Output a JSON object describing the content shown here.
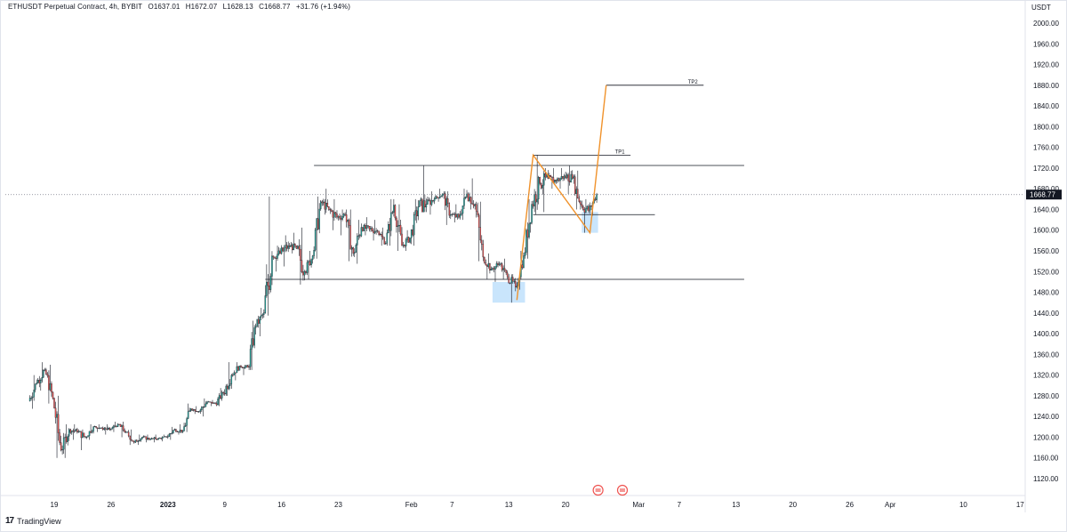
{
  "header": {
    "symbol": "ETHUSDT Perpetual Contract, 4h, BYBIT",
    "open": "O1637.01",
    "high": "H1672.07",
    "low": "L1628.13",
    "close": "C1668.77",
    "change": "+31.76 (+1.94%)"
  },
  "footer": {
    "brand": "TradingView"
  },
  "colors": {
    "up": "#26a69a",
    "down": "#ef5350",
    "candle": "#131722",
    "projection": "#f0922b",
    "level": "#131722",
    "zone": "#bbdefb",
    "grid": "#e0e3eb",
    "last_price_bg": "#131722"
  },
  "chart_data": {
    "type": "candlestick",
    "currency": "USDT",
    "ylim": [
      1100,
      2040
    ],
    "y_ticks": [
      "2000.00",
      "1960.00",
      "1920.00",
      "1880.00",
      "1840.00",
      "1800.00",
      "1760.00",
      "1720.00",
      "1680.00",
      "1640.00",
      "1600.00",
      "1560.00",
      "1520.00",
      "1480.00",
      "1440.00",
      "1400.00",
      "1360.00",
      "1320.00",
      "1280.00",
      "1240.00",
      "1200.00",
      "1160.00",
      "1120.00"
    ],
    "x_ticks": [
      "19",
      "26",
      "2023",
      "9",
      "16",
      "23",
      "Feb",
      "7",
      "13",
      "20",
      "Mar",
      "7",
      "13",
      "20",
      "26",
      "Apr",
      "10",
      "17"
    ],
    "last_price": "1668.77",
    "series": [
      {
        "candles_approx": [
          [
            "2022-12-16",
            1270,
            1320,
            1255,
            1305
          ],
          [
            "2022-12-17",
            1305,
            1345,
            1290,
            1330
          ],
          [
            "2022-12-18",
            1330,
            1340,
            1265,
            1275
          ],
          [
            "2022-12-19",
            1275,
            1280,
            1160,
            1175
          ],
          [
            "2022-12-20",
            1175,
            1225,
            1160,
            1215
          ],
          [
            "2022-12-21",
            1215,
            1225,
            1195,
            1210
          ],
          [
            "2022-12-22",
            1210,
            1215,
            1175,
            1200
          ],
          [
            "2022-12-23",
            1200,
            1225,
            1195,
            1220
          ],
          [
            "2022-12-24",
            1220,
            1225,
            1210,
            1218
          ],
          [
            "2022-12-25",
            1218,
            1225,
            1205,
            1215
          ],
          [
            "2022-12-26",
            1215,
            1230,
            1210,
            1225
          ],
          [
            "2022-12-27",
            1225,
            1230,
            1200,
            1210
          ],
          [
            "2022-12-28",
            1210,
            1215,
            1185,
            1190
          ],
          [
            "2022-12-29",
            1190,
            1205,
            1185,
            1200
          ],
          [
            "2022-12-30",
            1200,
            1205,
            1190,
            1196
          ],
          [
            "2022-12-31",
            1196,
            1205,
            1190,
            1198
          ],
          [
            "2023-01-01",
            1198,
            1205,
            1192,
            1200
          ],
          [
            "2023-01-02",
            1200,
            1220,
            1195,
            1215
          ],
          [
            "2023-01-03",
            1215,
            1225,
            1205,
            1212
          ],
          [
            "2023-01-04",
            1212,
            1265,
            1210,
            1255
          ],
          [
            "2023-01-05",
            1255,
            1260,
            1245,
            1250
          ],
          [
            "2023-01-06",
            1250,
            1275,
            1240,
            1268
          ],
          [
            "2023-01-07",
            1268,
            1272,
            1260,
            1265
          ],
          [
            "2023-01-08",
            1265,
            1295,
            1260,
            1285
          ],
          [
            "2023-01-09",
            1285,
            1345,
            1280,
            1320
          ],
          [
            "2023-01-10",
            1320,
            1345,
            1310,
            1338
          ],
          [
            "2023-01-11",
            1338,
            1340,
            1320,
            1335
          ],
          [
            "2023-01-12",
            1335,
            1425,
            1330,
            1415
          ],
          [
            "2023-01-13",
            1415,
            1450,
            1395,
            1440
          ],
          [
            "2023-01-14",
            1440,
            1665,
            1435,
            1550
          ],
          [
            "2023-01-15",
            1550,
            1570,
            1520,
            1555
          ],
          [
            "2023-01-16",
            1555,
            1590,
            1530,
            1570
          ],
          [
            "2023-01-17",
            1570,
            1595,
            1555,
            1565
          ],
          [
            "2023-01-18",
            1565,
            1605,
            1495,
            1520
          ],
          [
            "2023-01-19",
            1520,
            1560,
            1505,
            1550
          ],
          [
            "2023-01-20",
            1550,
            1665,
            1545,
            1655
          ],
          [
            "2023-01-21",
            1655,
            1680,
            1630,
            1640
          ],
          [
            "2023-01-22",
            1640,
            1660,
            1600,
            1625
          ],
          [
            "2023-01-23",
            1625,
            1640,
            1590,
            1630
          ],
          [
            "2023-01-24",
            1630,
            1640,
            1540,
            1555
          ],
          [
            "2023-01-25",
            1555,
            1620,
            1535,
            1605
          ],
          [
            "2023-01-26",
            1605,
            1625,
            1590,
            1602
          ],
          [
            "2023-01-27",
            1602,
            1620,
            1580,
            1598
          ],
          [
            "2023-01-28",
            1598,
            1605,
            1570,
            1575
          ],
          [
            "2023-01-29",
            1575,
            1660,
            1570,
            1648
          ],
          [
            "2023-01-30",
            1648,
            1650,
            1560,
            1570
          ],
          [
            "2023-01-31",
            1570,
            1600,
            1560,
            1585
          ],
          [
            "2023-02-01",
            1585,
            1660,
            1570,
            1645
          ],
          [
            "2023-02-02",
            1645,
            1725,
            1635,
            1650
          ],
          [
            "2023-02-03",
            1650,
            1675,
            1630,
            1660
          ],
          [
            "2023-02-04",
            1660,
            1680,
            1655,
            1670
          ],
          [
            "2023-02-05",
            1670,
            1675,
            1610,
            1630
          ],
          [
            "2023-02-06",
            1630,
            1650,
            1615,
            1625
          ],
          [
            "2023-02-07",
            1625,
            1680,
            1620,
            1670
          ],
          [
            "2023-02-08",
            1670,
            1700,
            1640,
            1650
          ],
          [
            "2023-02-09",
            1650,
            1655,
            1540,
            1548
          ],
          [
            "2023-02-10",
            1548,
            1555,
            1505,
            1525
          ],
          [
            "2023-02-11",
            1525,
            1540,
            1500,
            1535
          ],
          [
            "2023-02-12",
            1535,
            1545,
            1505,
            1510
          ],
          [
            "2023-02-13",
            1510,
            1515,
            1460,
            1490
          ],
          [
            "2023-02-14",
            1490,
            1560,
            1485,
            1550
          ],
          [
            "2023-02-15",
            1550,
            1660,
            1545,
            1650
          ],
          [
            "2023-02-16",
            1650,
            1745,
            1630,
            1690
          ],
          [
            "2023-02-17",
            1690,
            1720,
            1635,
            1700
          ],
          [
            "2023-02-18",
            1700,
            1720,
            1680,
            1695
          ],
          [
            "2023-02-19",
            1695,
            1720,
            1680,
            1705
          ],
          [
            "2023-02-20",
            1705,
            1725,
            1670,
            1700
          ],
          [
            "2023-02-21",
            1700,
            1715,
            1640,
            1650
          ],
          [
            "2023-02-22",
            1650,
            1660,
            1595,
            1637
          ],
          [
            "2023-02-23",
            1637,
            1672,
            1628,
            1669
          ]
        ]
      }
    ],
    "annotations": {
      "levels": [
        {
          "label": "",
          "price": 1725,
          "from": "2023-01-20",
          "to": "2023-03-14"
        },
        {
          "label": "",
          "price": 1505,
          "from": "2023-01-14",
          "to": "2023-03-14"
        },
        {
          "label": "",
          "price": 1630,
          "from": "2023-02-16",
          "to": "2023-03-03"
        },
        {
          "label": "TP1",
          "price": 1745,
          "from": "2023-02-16",
          "to": "2023-02-28"
        },
        {
          "label": "TP2",
          "price": 1880,
          "from": "2023-02-25",
          "to": "2023-03-09"
        }
      ],
      "zones": [
        {
          "from": "2023-02-11",
          "to": "2023-02-15",
          "low": 1460,
          "high": 1500
        },
        {
          "from": "2023-02-22",
          "to": "2023-02-24",
          "low": 1595,
          "high": 1635
        }
      ],
      "projection": [
        [
          "2023-02-14",
          1465
        ],
        [
          "2023-02-16",
          1745
        ],
        [
          "2023-02-23",
          1595
        ],
        [
          "2023-02-25",
          1880
        ]
      ]
    }
  }
}
